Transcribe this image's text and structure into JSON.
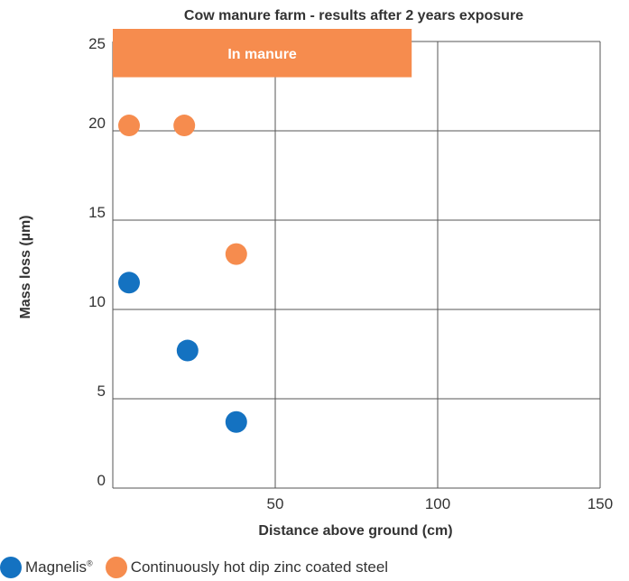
{
  "chart_data": {
    "type": "scatter",
    "title": "Cow manure farm - results after 2 years exposure",
    "xlabel": "Distance above ground (cm)",
    "ylabel": "Mass loss (µm)",
    "xlim": [
      0,
      150
    ],
    "ylim": [
      0,
      25
    ],
    "x_ticks": [
      "50",
      "100",
      "150"
    ],
    "y_ticks": [
      "0",
      "5",
      "10",
      "15",
      "20",
      "25"
    ],
    "x_tick_values": [
      50,
      100,
      150
    ],
    "y_tick_values": [
      0,
      5,
      10,
      15,
      20,
      25
    ],
    "grid": true,
    "legend_position": "bottom-left",
    "band": {
      "label": "In manure",
      "x_from": 0,
      "x_to": 92,
      "y_from": 23,
      "y_to": 25,
      "color": "#f68c4e"
    },
    "series": [
      {
        "name": "Magnelis®",
        "color": "#1472c1",
        "points": [
          {
            "x": 5,
            "y": 11.5
          },
          {
            "x": 23,
            "y": 7.7
          },
          {
            "x": 38,
            "y": 3.7
          }
        ]
      },
      {
        "name": "Continuously hot dip zinc coated steel",
        "color": "#f68c4e",
        "points": [
          {
            "x": 5,
            "y": 20.3
          },
          {
            "x": 22,
            "y": 20.3
          },
          {
            "x": 38,
            "y": 13.1
          }
        ]
      }
    ]
  },
  "legend": {
    "items": [
      {
        "main": "Magnelis",
        "sup": "®",
        "color": "#1472c1"
      },
      {
        "main": "Continuously hot dip zinc coated steel",
        "sup": "",
        "color": "#f68c4e"
      }
    ]
  }
}
